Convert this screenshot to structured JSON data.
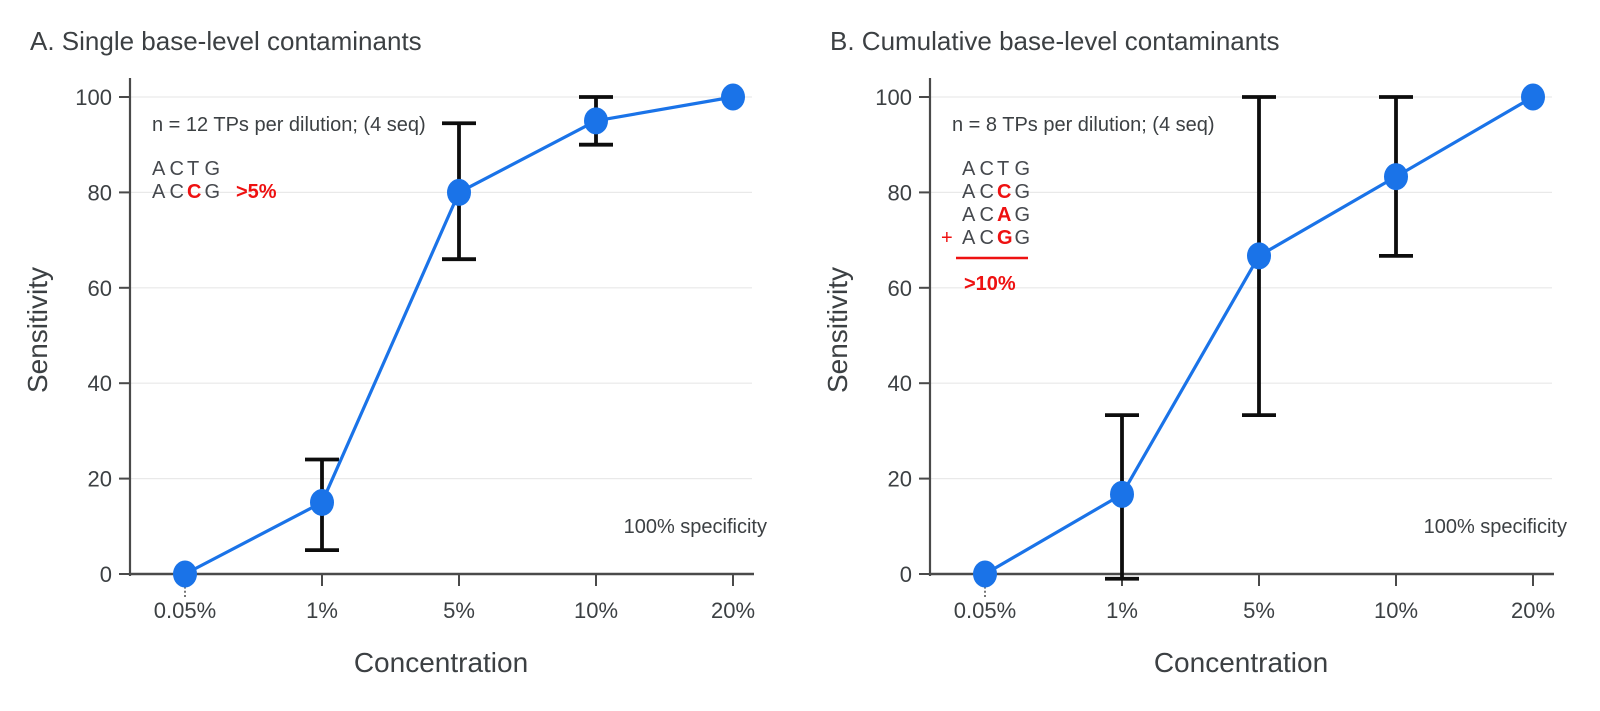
{
  "figure": {
    "background": "#ffffff",
    "colors": {
      "series_blue": "#1a73e8",
      "accent_red": "#ee1111",
      "text_dark": "#3c4043",
      "seq_gray": "#46494e",
      "grid_gray": "#e9e9e9",
      "axis_gray": "#4a4a4a",
      "errorbar_black": "#0d0d0d"
    }
  },
  "chart_data": [
    {
      "id": "chart-a",
      "type": "line",
      "title": "A. Single base-level contaminants",
      "xlabel": "Concentration",
      "ylabel": "Sensitivity",
      "categories": [
        "0.05%",
        "1%",
        "5%",
        "10%",
        "20%"
      ],
      "values": [
        0,
        15,
        80,
        95,
        100
      ],
      "error_bars": [
        {
          "index": 0,
          "low": -3,
          "high": 0,
          "style": "dashed"
        },
        {
          "index": 1,
          "low": 5,
          "high": 24,
          "style": "solid"
        },
        {
          "index": 2,
          "low": 66,
          "high": 94.5,
          "style": "solid"
        },
        {
          "index": 3,
          "low": 90,
          "high": 100,
          "style": "solid"
        }
      ],
      "ylim": [
        0,
        100
      ],
      "yticks": [
        0,
        20,
        40,
        60,
        80,
        100
      ],
      "grid": "horizontal-light",
      "legend": null,
      "sample_note": "n = 12 TPs per dilution; (4 seq)",
      "specificity_note": "100% specificity",
      "sequence_annotation": {
        "lines": [
          {
            "text": "ACTG",
            "highlight_index": -1,
            "prefix": ""
          },
          {
            "text": "ACCG",
            "highlight_index": 2,
            "prefix": ""
          }
        ],
        "threshold": ">5%",
        "threshold_position": "inline",
        "sum_rule": false
      }
    },
    {
      "id": "chart-b",
      "type": "line",
      "title": "B. Cumulative base-level contaminants",
      "xlabel": "Concentration",
      "ylabel": "Sensitivity",
      "categories": [
        "0.05%",
        "1%",
        "5%",
        "10%",
        "20%"
      ],
      "values": [
        0,
        16.7,
        66.7,
        83.3,
        100
      ],
      "error_bars": [
        {
          "index": 0,
          "low": -3,
          "high": 0,
          "style": "dashed"
        },
        {
          "index": 1,
          "low": -1,
          "high": 33.3,
          "style": "solid"
        },
        {
          "index": 2,
          "low": 33.3,
          "high": 100,
          "style": "solid"
        },
        {
          "index": 3,
          "low": 66.7,
          "high": 100,
          "style": "solid"
        }
      ],
      "ylim": [
        0,
        100
      ],
      "yticks": [
        0,
        20,
        40,
        60,
        80,
        100
      ],
      "grid": "horizontal-light",
      "legend": null,
      "sample_note": "n = 8 TPs per dilution; (4 seq)",
      "specificity_note": "100% specificity",
      "sequence_annotation": {
        "lines": [
          {
            "text": "ACTG",
            "highlight_index": -1,
            "prefix": ""
          },
          {
            "text": "ACCG",
            "highlight_index": 2,
            "prefix": ""
          },
          {
            "text": "ACAG",
            "highlight_index": 2,
            "prefix": ""
          },
          {
            "text": "ACGG",
            "highlight_index": 2,
            "prefix": "+"
          }
        ],
        "threshold": ">10%",
        "threshold_position": "below",
        "sum_rule": true
      }
    }
  ]
}
